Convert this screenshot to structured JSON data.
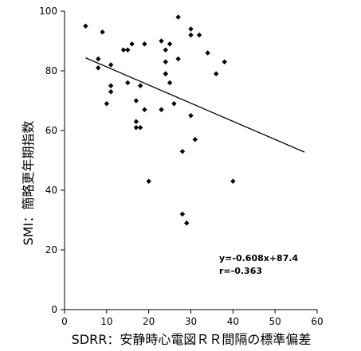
{
  "chart_data": {
    "type": "scatter",
    "xlabel": "SDRR：安静時心電図ＲＲ間隔の標準偏差",
    "ylabel": "SMI：簡略更年期指数",
    "xlim": [
      0,
      60
    ],
    "ylim": [
      0,
      100
    ],
    "xticks": [
      "0",
      "10",
      "20",
      "30",
      "40",
      "50",
      "60"
    ],
    "yticks": [
      "0",
      "20",
      "40",
      "60",
      "80",
      "100"
    ],
    "grid": false,
    "points": [
      {
        "x": 5,
        "y": 95
      },
      {
        "x": 8,
        "y": 84
      },
      {
        "x": 8,
        "y": 81
      },
      {
        "x": 9,
        "y": 93
      },
      {
        "x": 10,
        "y": 69
      },
      {
        "x": 11,
        "y": 82
      },
      {
        "x": 11,
        "y": 75
      },
      {
        "x": 11,
        "y": 73
      },
      {
        "x": 14,
        "y": 87
      },
      {
        "x": 15,
        "y": 87
      },
      {
        "x": 15,
        "y": 76
      },
      {
        "x": 16,
        "y": 89
      },
      {
        "x": 17,
        "y": 70
      },
      {
        "x": 17,
        "y": 63
      },
      {
        "x": 17,
        "y": 61
      },
      {
        "x": 18,
        "y": 75
      },
      {
        "x": 18,
        "y": 61
      },
      {
        "x": 19,
        "y": 89
      },
      {
        "x": 19,
        "y": 67
      },
      {
        "x": 20,
        "y": 43
      },
      {
        "x": 23,
        "y": 90
      },
      {
        "x": 23,
        "y": 67
      },
      {
        "x": 24,
        "y": 87
      },
      {
        "x": 24,
        "y": 83
      },
      {
        "x": 24,
        "y": 79
      },
      {
        "x": 24,
        "y": 79
      },
      {
        "x": 25,
        "y": 76
      },
      {
        "x": 25,
        "y": 89
      },
      {
        "x": 26,
        "y": 69
      },
      {
        "x": 27,
        "y": 98
      },
      {
        "x": 27,
        "y": 84
      },
      {
        "x": 28,
        "y": 53
      },
      {
        "x": 28,
        "y": 32
      },
      {
        "x": 29,
        "y": 29
      },
      {
        "x": 30,
        "y": 94
      },
      {
        "x": 30,
        "y": 92
      },
      {
        "x": 30,
        "y": 65
      },
      {
        "x": 31,
        "y": 57
      },
      {
        "x": 32,
        "y": 92
      },
      {
        "x": 34,
        "y": 86
      },
      {
        "x": 36,
        "y": 79
      },
      {
        "x": 38,
        "y": 83
      },
      {
        "x": 40,
        "y": 43
      }
    ],
    "trendline": {
      "slope": -0.608,
      "intercept": 87.4,
      "x_range": [
        5,
        57
      ]
    },
    "annotations": [
      "y=-0.608x+87.4",
      "r=-0.363"
    ]
  }
}
